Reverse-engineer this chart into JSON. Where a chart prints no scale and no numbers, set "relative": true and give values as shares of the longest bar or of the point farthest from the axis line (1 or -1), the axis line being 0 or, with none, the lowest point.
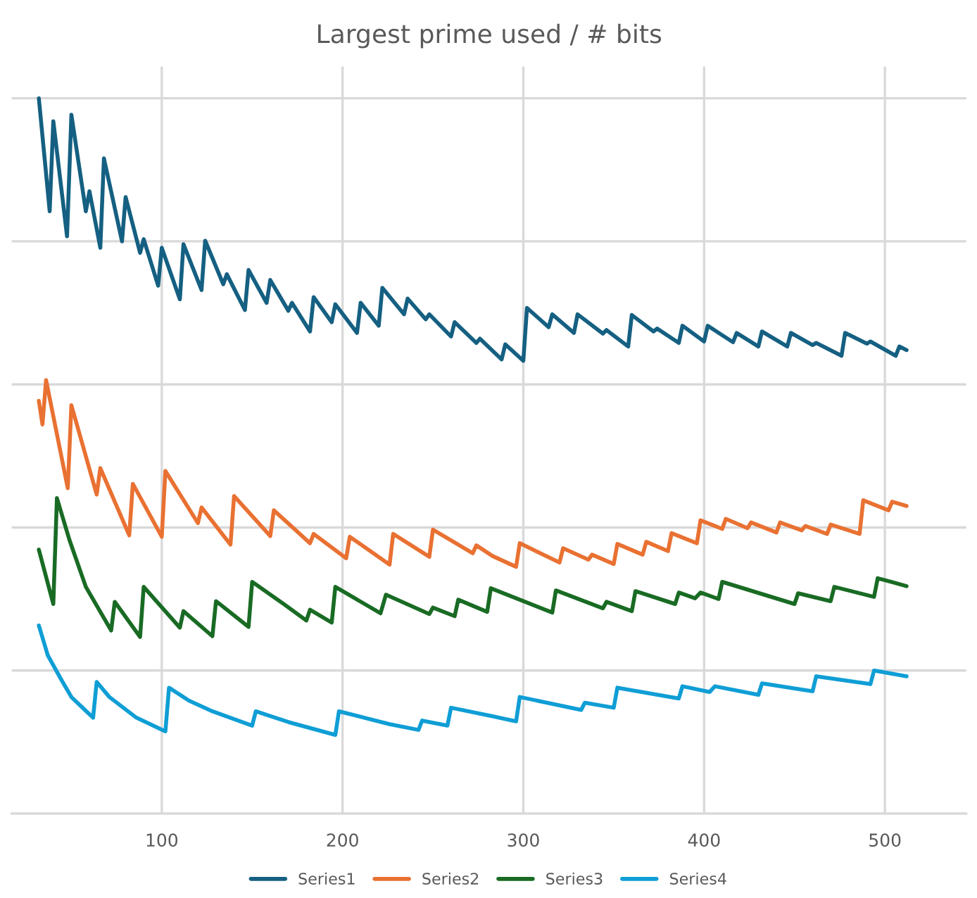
{
  "chart_data": {
    "type": "line",
    "title": "Largest prime used / # bits",
    "relative": true,
    "xlim": [
      17,
      545
    ],
    "xticks": [
      100,
      200,
      300,
      400,
      500
    ],
    "tick_labels": "x",
    "grid": true,
    "legend": "bottom",
    "marker": "none",
    "line_style": "solid",
    "series": [
      {
        "name": "Series1",
        "color": "#156082",
        "x": [
          32,
          38,
          40,
          47.6,
          50,
          58,
          60,
          66,
          68,
          78,
          80,
          88,
          90,
          98,
          100,
          110,
          112,
          122,
          124,
          134,
          136,
          146,
          148,
          158,
          160,
          170,
          172,
          182,
          184,
          194,
          196,
          208,
          210,
          220,
          222,
          234,
          236,
          246,
          248,
          260,
          262,
          274,
          276,
          283,
          288,
          290,
          300,
          302,
          314,
          316,
          328,
          330,
          344,
          346,
          358,
          360,
          372,
          374,
          386,
          388,
          400,
          402,
          416,
          418,
          430,
          432,
          446,
          448,
          460,
          462,
          476,
          478,
          490,
          492,
          506,
          508,
          512
        ],
        "values": [
          1.0,
          0.842,
          0.968,
          0.807,
          0.977,
          0.842,
          0.87,
          0.791,
          0.916,
          0.8,
          0.862,
          0.784,
          0.803,
          0.738,
          0.791,
          0.719,
          0.796,
          0.732,
          0.801,
          0.74,
          0.754,
          0.704,
          0.76,
          0.714,
          0.746,
          0.703,
          0.714,
          0.674,
          0.722,
          0.687,
          0.712,
          0.672,
          0.714,
          0.682,
          0.735,
          0.698,
          0.72,
          0.691,
          0.698,
          0.667,
          0.687,
          0.658,
          0.664,
          0.647,
          0.635,
          0.656,
          0.633,
          0.707,
          0.68,
          0.698,
          0.672,
          0.698,
          0.671,
          0.676,
          0.653,
          0.697,
          0.674,
          0.678,
          0.658,
          0.682,
          0.66,
          0.682,
          0.659,
          0.672,
          0.653,
          0.674,
          0.653,
          0.672,
          0.655,
          0.658,
          0.64,
          0.672,
          0.657,
          0.66,
          0.64,
          0.653,
          0.648
        ]
      },
      {
        "name": "Series2",
        "color": "#e97132",
        "x": [
          32,
          34,
          36,
          48,
          50,
          64,
          66,
          82,
          84,
          100,
          102,
          120,
          122,
          138,
          140,
          160,
          162,
          182,
          184,
          202,
          204,
          226,
          228,
          248,
          250,
          272,
          274,
          283,
          296,
          298,
          320,
          322,
          336,
          338,
          350,
          352,
          366,
          368,
          380,
          382,
          396,
          398,
          410,
          412,
          424,
          426,
          440,
          442,
          454,
          456,
          468,
          470,
          486,
          488,
          502,
          504,
          512
        ],
        "values": [
          0.577,
          0.544,
          0.606,
          0.455,
          0.571,
          0.446,
          0.483,
          0.389,
          0.461,
          0.387,
          0.479,
          0.406,
          0.428,
          0.376,
          0.444,
          0.388,
          0.424,
          0.378,
          0.391,
          0.357,
          0.387,
          0.348,
          0.391,
          0.359,
          0.397,
          0.364,
          0.375,
          0.36,
          0.345,
          0.378,
          0.351,
          0.371,
          0.355,
          0.362,
          0.349,
          0.377,
          0.362,
          0.38,
          0.367,
          0.392,
          0.378,
          0.41,
          0.398,
          0.412,
          0.399,
          0.407,
          0.393,
          0.407,
          0.396,
          0.402,
          0.391,
          0.404,
          0.391,
          0.438,
          0.424,
          0.436,
          0.43
        ]
      },
      {
        "name": "Series3",
        "color": "#196b24",
        "x": [
          32,
          40,
          42,
          49,
          58,
          72,
          74,
          88,
          90,
          110,
          112,
          128,
          130,
          148,
          150,
          168,
          180,
          182,
          194,
          196,
          221,
          224,
          248,
          250,
          262,
          264,
          280,
          282,
          316,
          318,
          344,
          346,
          360,
          362,
          384,
          386,
          395,
          398,
          408,
          410,
          450,
          452,
          470,
          472,
          494,
          496,
          512
        ],
        "values": [
          0.369,
          0.293,
          0.441,
          0.382,
          0.317,
          0.256,
          0.296,
          0.247,
          0.317,
          0.26,
          0.283,
          0.248,
          0.297,
          0.261,
          0.324,
          0.292,
          0.27,
          0.285,
          0.267,
          0.317,
          0.28,
          0.306,
          0.279,
          0.288,
          0.276,
          0.299,
          0.282,
          0.315,
          0.281,
          0.312,
          0.287,
          0.296,
          0.283,
          0.311,
          0.293,
          0.309,
          0.301,
          0.309,
          0.3,
          0.324,
          0.293,
          0.308,
          0.297,
          0.317,
          0.303,
          0.329,
          0.318
        ]
      },
      {
        "name": "Series4",
        "color": "#0f9ed5",
        "x": [
          32,
          37,
          44,
          50,
          62,
          64,
          71,
          86,
          102,
          104,
          115,
          128,
          150,
          152,
          170,
          196,
          198,
          226,
          242,
          244,
          258,
          260,
          283,
          296,
          298,
          332,
          334,
          350,
          352,
          386,
          388,
          403,
          406,
          430,
          432,
          460,
          462,
          492,
          494,
          512
        ],
        "values": [
          0.263,
          0.221,
          0.189,
          0.163,
          0.134,
          0.184,
          0.163,
          0.134,
          0.115,
          0.176,
          0.158,
          0.143,
          0.123,
          0.143,
          0.128,
          0.11,
          0.143,
          0.125,
          0.117,
          0.13,
          0.123,
          0.148,
          0.136,
          0.129,
          0.163,
          0.145,
          0.155,
          0.148,
          0.176,
          0.161,
          0.178,
          0.17,
          0.178,
          0.166,
          0.182,
          0.171,
          0.192,
          0.181,
          0.2,
          0.192
        ]
      }
    ]
  }
}
